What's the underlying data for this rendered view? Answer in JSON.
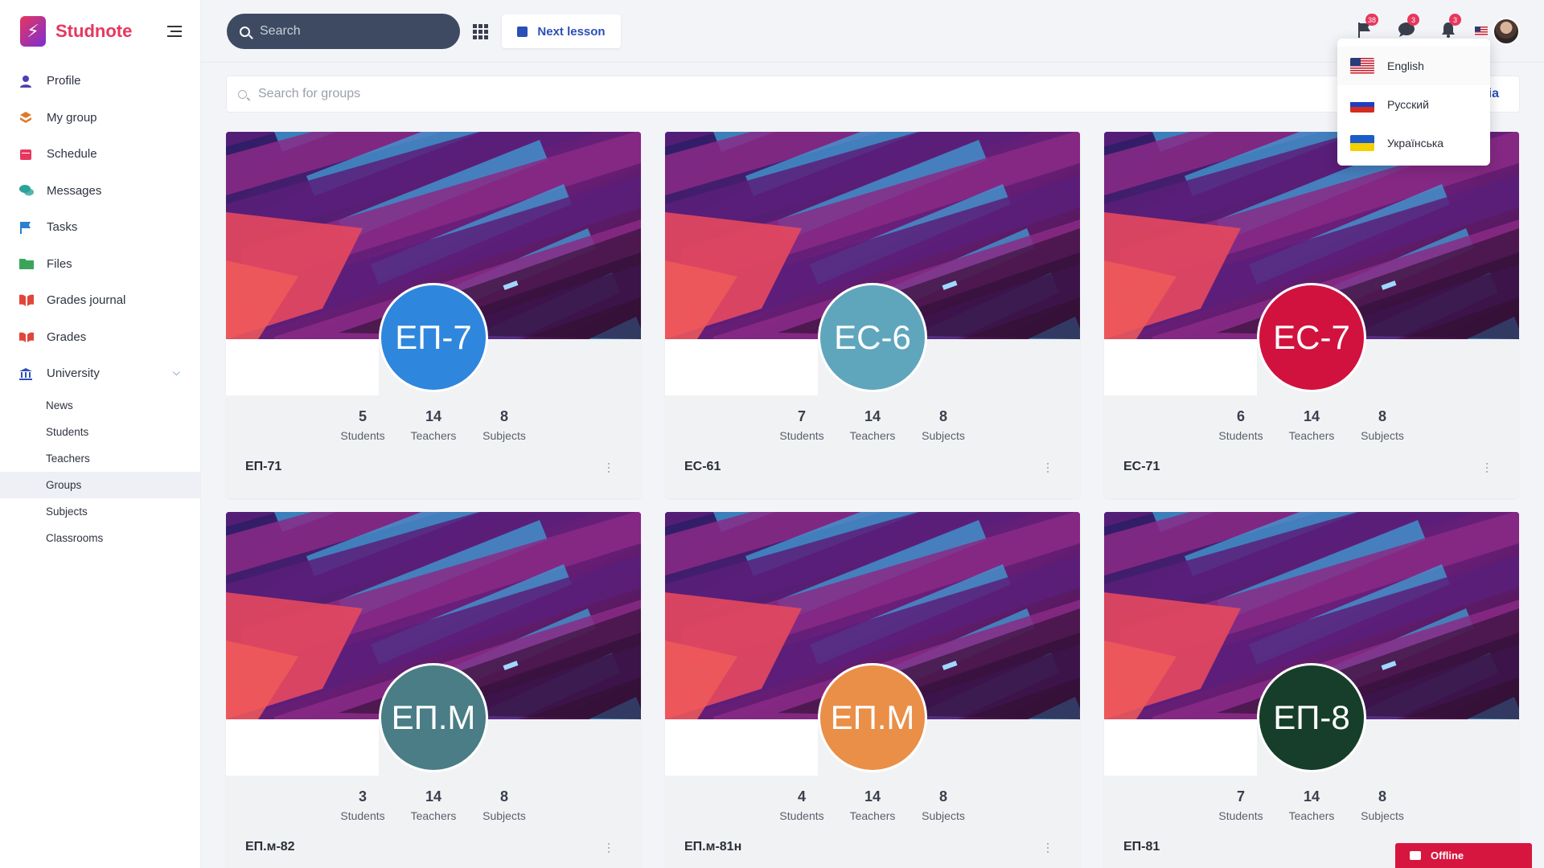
{
  "brand": {
    "name": "Studnote"
  },
  "sidebar": {
    "items": [
      {
        "label": "Profile",
        "icon": "user-icon",
        "color": "#4a3fb5"
      },
      {
        "label": "My group",
        "icon": "layers-icon",
        "color": "#e07a2a"
      },
      {
        "label": "Schedule",
        "icon": "calendar-icon",
        "color": "#e8365d"
      },
      {
        "label": "Messages",
        "icon": "chat-icon",
        "color": "#2aa39a"
      },
      {
        "label": "Tasks",
        "icon": "flag-icon",
        "color": "#2b7fd1"
      },
      {
        "label": "Files",
        "icon": "folder-icon",
        "color": "#3aa55a"
      },
      {
        "label": "Grades journal",
        "icon": "book-icon",
        "color": "#e0453a"
      },
      {
        "label": "Grades",
        "icon": "open-book-icon",
        "color": "#e0453a"
      },
      {
        "label": "University",
        "icon": "university-icon",
        "color": "#2b4fb8"
      }
    ],
    "sub_items": [
      {
        "label": "News"
      },
      {
        "label": "Students"
      },
      {
        "label": "Teachers"
      },
      {
        "label": "Groups",
        "active": true
      },
      {
        "label": "Subjects"
      },
      {
        "label": "Classrooms"
      }
    ]
  },
  "topbar": {
    "search_placeholder": "Search",
    "next_lesson": "Next lesson",
    "badges": {
      "tasks": "38",
      "messages": "3",
      "notifications": "3"
    }
  },
  "groups_search": {
    "placeholder": "Search for groups",
    "link_fragment": "lia"
  },
  "language_menu": {
    "items": [
      {
        "label": "English",
        "flag": "us-flag"
      },
      {
        "label": "Русский",
        "flag": "ru-flag"
      },
      {
        "label": "Українська",
        "flag": "ua-flag"
      }
    ]
  },
  "stat_labels": {
    "students": "Students",
    "teachers": "Teachers",
    "subjects": "Subjects"
  },
  "groups": [
    {
      "abbr": "ЕП-7",
      "name": "ЕП-71",
      "students": "5",
      "teachers": "14",
      "subjects": "8",
      "color": "#2f86dd"
    },
    {
      "abbr": "ЕС-6",
      "name": "ЕС-61",
      "students": "7",
      "teachers": "14",
      "subjects": "8",
      "color": "#5fa6bd"
    },
    {
      "abbr": "ЕС-7",
      "name": "ЕС-71",
      "students": "6",
      "teachers": "14",
      "subjects": "8",
      "color": "#d1123f"
    },
    {
      "abbr": "ЕП.М",
      "name": "ЕП.м-82",
      "students": "3",
      "teachers": "14",
      "subjects": "8",
      "color": "#4a7d86"
    },
    {
      "abbr": "ЕП.М",
      "name": "ЕП.м-81н",
      "students": "4",
      "teachers": "14",
      "subjects": "8",
      "color": "#ea8f48"
    },
    {
      "abbr": "ЕП-8",
      "name": "ЕП-81",
      "students": "7",
      "teachers": "14",
      "subjects": "8",
      "color": "#173e2a"
    }
  ],
  "status": {
    "offline": "Offline"
  }
}
